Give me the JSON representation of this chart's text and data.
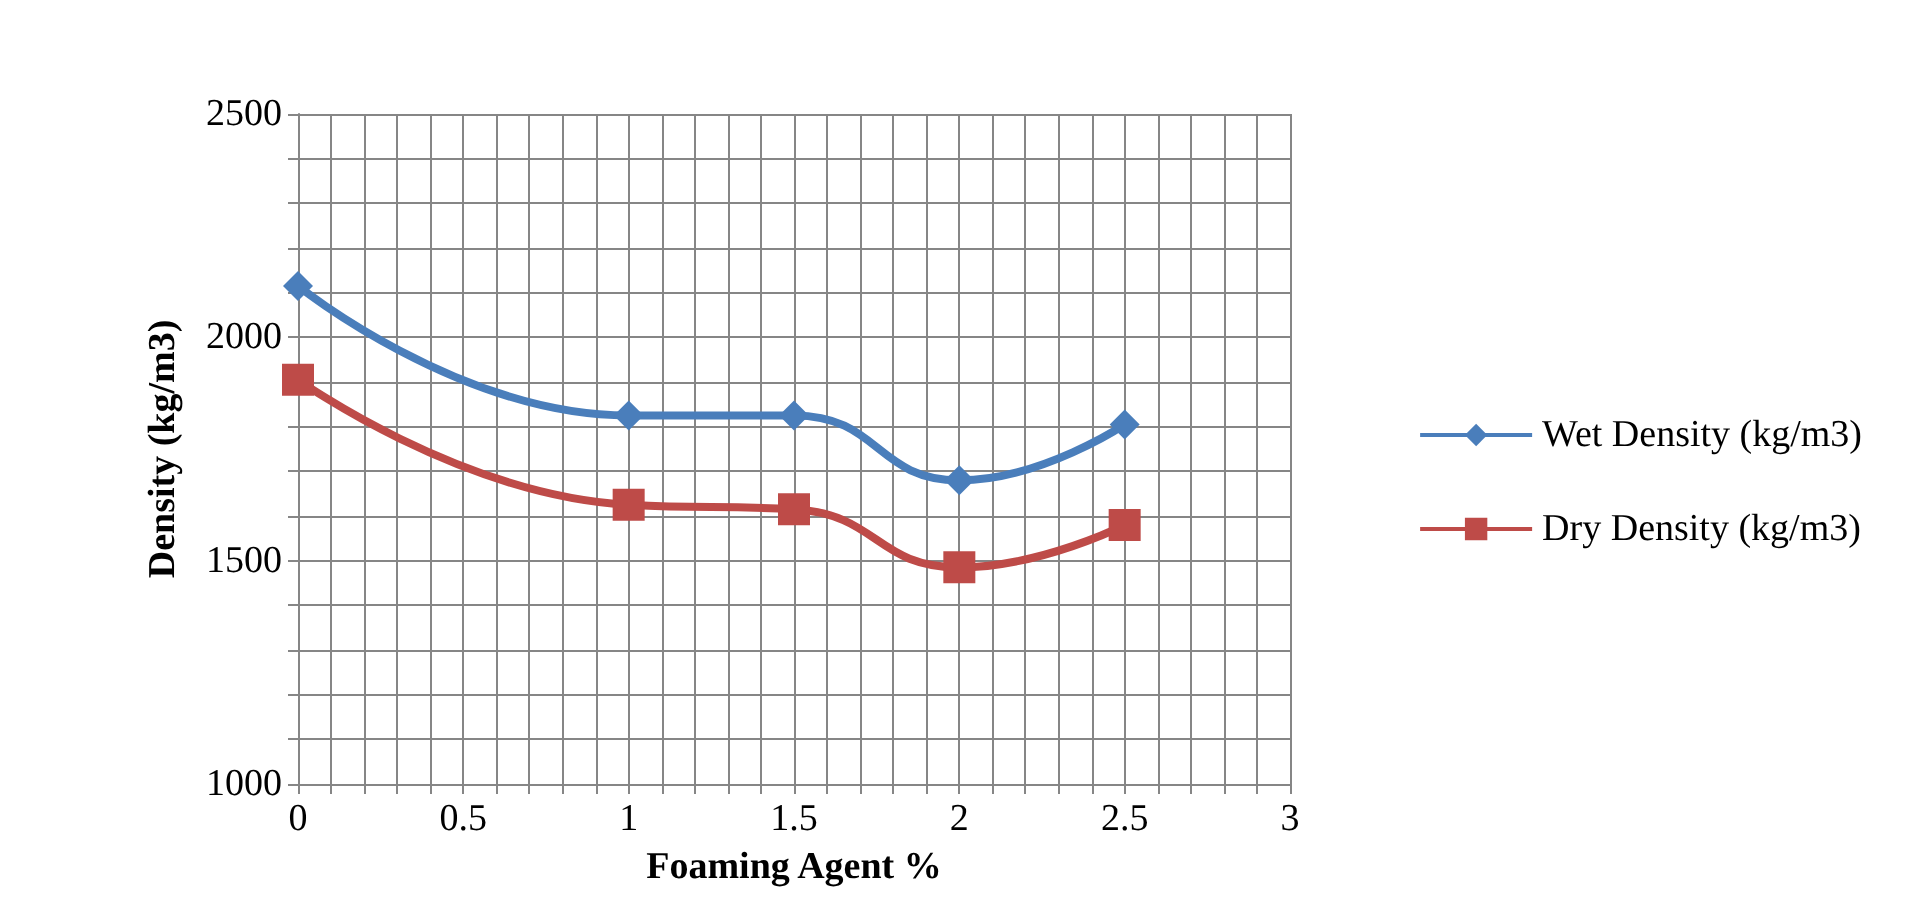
{
  "chart_data": {
    "type": "line",
    "xlabel": "Foaming Agent %",
    "ylabel": "Density (kg/m3)",
    "x": [
      0,
      1,
      1.5,
      2,
      2.5
    ],
    "series": [
      {
        "name": "Wet Density (kg/m3)",
        "color": "#4a7ebb",
        "marker": "diamond",
        "values": [
          2115,
          1825,
          1825,
          1680,
          1805
        ]
      },
      {
        "name": "Dry Density (kg/m3)",
        "color": "#be4b48",
        "marker": "square",
        "values": [
          1905,
          1625,
          1615,
          1485,
          1580
        ]
      }
    ],
    "xlim": [
      0,
      3
    ],
    "ylim": [
      1000,
      2500
    ],
    "xticks": [
      0,
      {
        "value": 0.1,
        "label": null
      },
      {
        "value": 0.2,
        "label": null
      },
      {
        "value": 0.3,
        "label": null
      },
      {
        "value": 0.4,
        "label": null
      },
      0.5,
      {
        "value": 0.6,
        "label": null
      },
      {
        "value": 0.7,
        "label": null
      },
      {
        "value": 0.8,
        "label": null
      },
      {
        "value": 0.9,
        "label": null
      },
      1,
      {
        "value": 1.1,
        "label": null
      },
      {
        "value": 1.2,
        "label": null
      },
      {
        "value": 1.3,
        "label": null
      },
      {
        "value": 1.4,
        "label": null
      },
      1.5,
      {
        "value": 1.6,
        "label": null
      },
      {
        "value": 1.7,
        "label": null
      },
      {
        "value": 1.8,
        "label": null
      },
      {
        "value": 1.9,
        "label": null
      },
      2,
      {
        "value": 2.1,
        "label": null
      },
      {
        "value": 2.2,
        "label": null
      },
      {
        "value": 2.3,
        "label": null
      },
      {
        "value": 2.4,
        "label": null
      },
      2.5,
      {
        "value": 2.6,
        "label": null
      },
      {
        "value": 2.7,
        "label": null
      },
      {
        "value": 2.8,
        "label": null
      },
      {
        "value": 2.9,
        "label": null
      },
      3
    ],
    "yticks": [
      1000,
      {
        "value": 1100,
        "label": null
      },
      {
        "value": 1200,
        "label": null
      },
      {
        "value": 1300,
        "label": null
      },
      {
        "value": 1400,
        "label": null
      },
      1500,
      {
        "value": 1600,
        "label": null
      },
      {
        "value": 1700,
        "label": null
      },
      {
        "value": 1800,
        "label": null
      },
      {
        "value": 1900,
        "label": null
      },
      2000,
      {
        "value": 2100,
        "label": null
      },
      {
        "value": 2200,
        "label": null
      },
      {
        "value": 2300,
        "label": null
      },
      {
        "value": 2400,
        "label": null
      },
      2500
    ],
    "grid": true,
    "legend": "right",
    "line_style": "solid"
  }
}
